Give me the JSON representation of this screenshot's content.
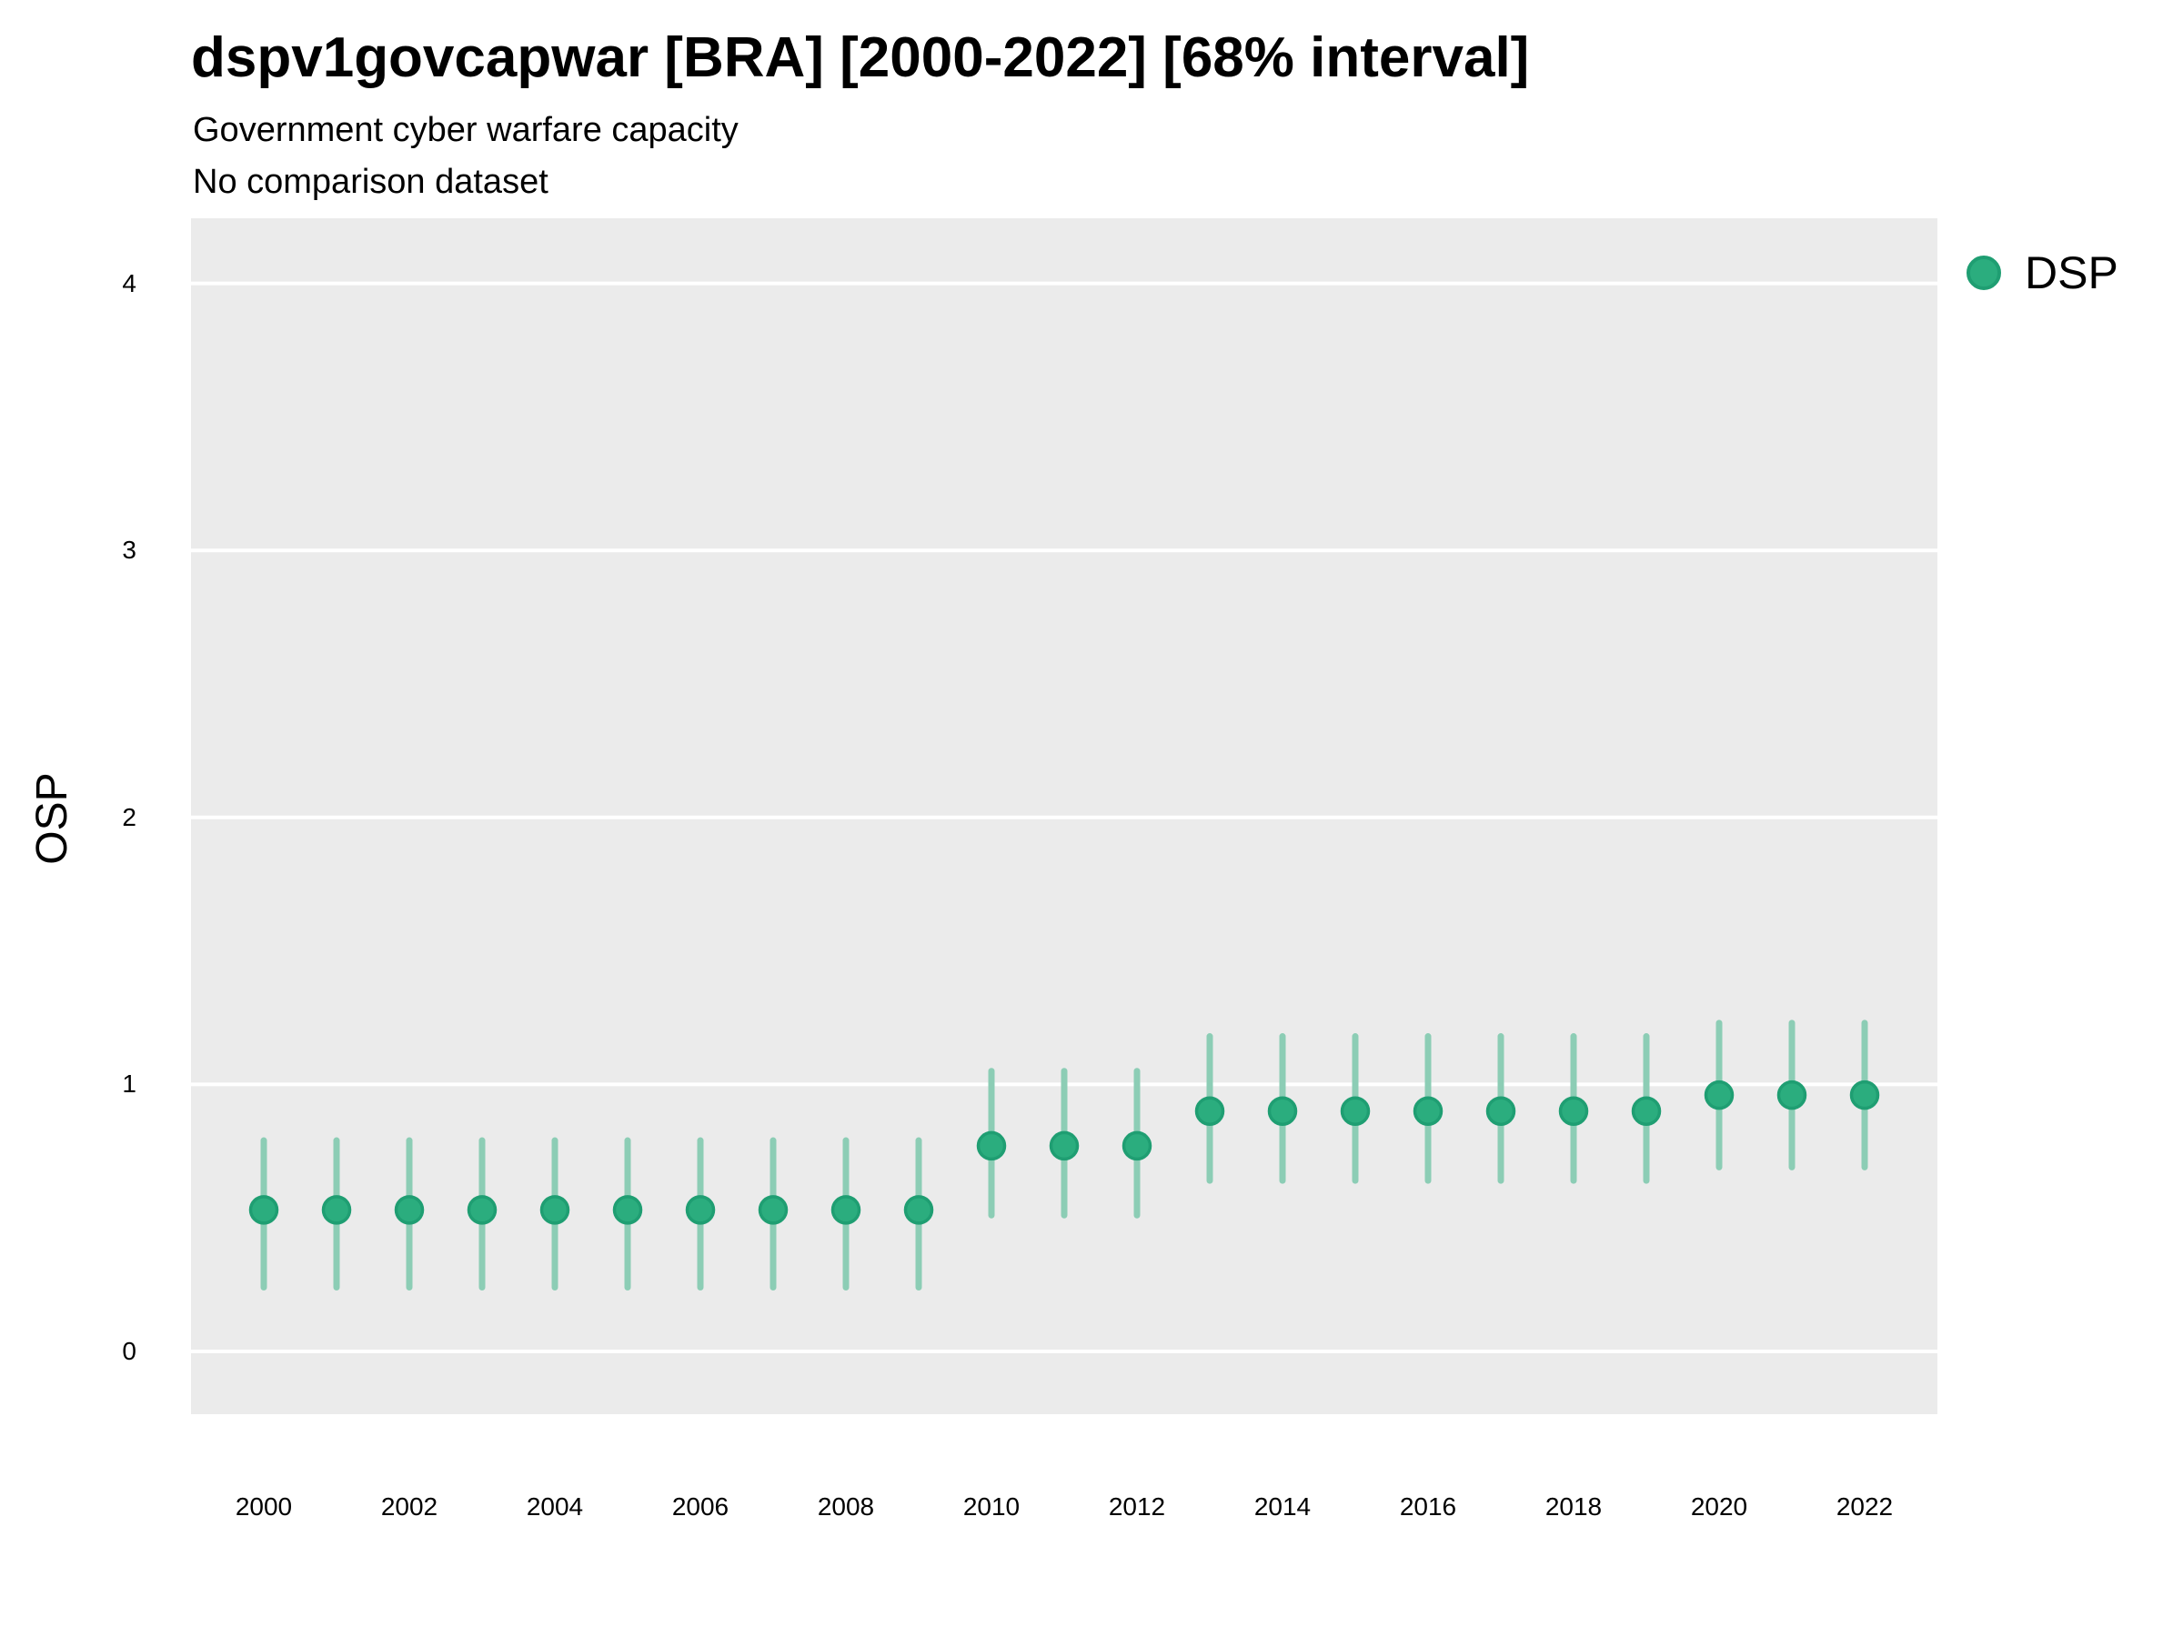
{
  "header": {
    "title": "dspv1govcapwar [BRA] [2000-2022] [68% interval]",
    "subtitle": "Government cyber warfare capacity",
    "note": "No comparison dataset"
  },
  "y_axis_title": "OSP",
  "legend": {
    "position": "right-top",
    "items": [
      {
        "label": "DSP",
        "color": "#2BAD7E"
      }
    ]
  },
  "colors": {
    "point_fill": "#2BAD7E",
    "point_stroke": "#1F9E72",
    "interval_bar": "#8CCDB5",
    "panel_bg": "#EBEBEB",
    "gridline": "#FFFFFF",
    "text": "#000000"
  },
  "chart_data": {
    "type": "scatter",
    "subtype": "pointrange",
    "title": "dspv1govcapwar [BRA] [2000-2022] [68% interval]",
    "subtitle": "Government cyber warfare capacity",
    "note": "No comparison dataset",
    "xlabel": "",
    "ylabel": "OSP",
    "interval_level": "68%",
    "grid": "horizontal major gridlines only, white on grey panel",
    "legend_position": "right-top",
    "x": [
      2000,
      2001,
      2002,
      2003,
      2004,
      2005,
      2006,
      2007,
      2008,
      2009,
      2010,
      2011,
      2012,
      2013,
      2014,
      2015,
      2016,
      2017,
      2018,
      2019,
      2020,
      2021,
      2022
    ],
    "series": [
      {
        "name": "DSP",
        "values": [
          0.53,
          0.53,
          0.53,
          0.53,
          0.53,
          0.53,
          0.53,
          0.53,
          0.53,
          0.53,
          0.77,
          0.77,
          0.77,
          0.9,
          0.9,
          0.9,
          0.9,
          0.9,
          0.9,
          0.9,
          0.96,
          0.96,
          0.96
        ],
        "lower": [
          0.24,
          0.24,
          0.24,
          0.24,
          0.24,
          0.24,
          0.24,
          0.24,
          0.24,
          0.24,
          0.51,
          0.51,
          0.51,
          0.64,
          0.64,
          0.64,
          0.64,
          0.64,
          0.64,
          0.64,
          0.69,
          0.69,
          0.69
        ],
        "upper": [
          0.79,
          0.79,
          0.79,
          0.79,
          0.79,
          0.79,
          0.79,
          0.79,
          0.79,
          0.79,
          1.05,
          1.05,
          1.05,
          1.18,
          1.18,
          1.18,
          1.18,
          1.18,
          1.18,
          1.18,
          1.23,
          1.23,
          1.23
        ]
      }
    ],
    "xticks": [
      2000,
      2002,
      2004,
      2006,
      2008,
      2010,
      2012,
      2014,
      2016,
      2018,
      2020,
      2022
    ],
    "yticks": [
      0,
      1,
      2,
      3,
      4
    ],
    "ylim": [
      -0.25,
      4.25
    ]
  }
}
